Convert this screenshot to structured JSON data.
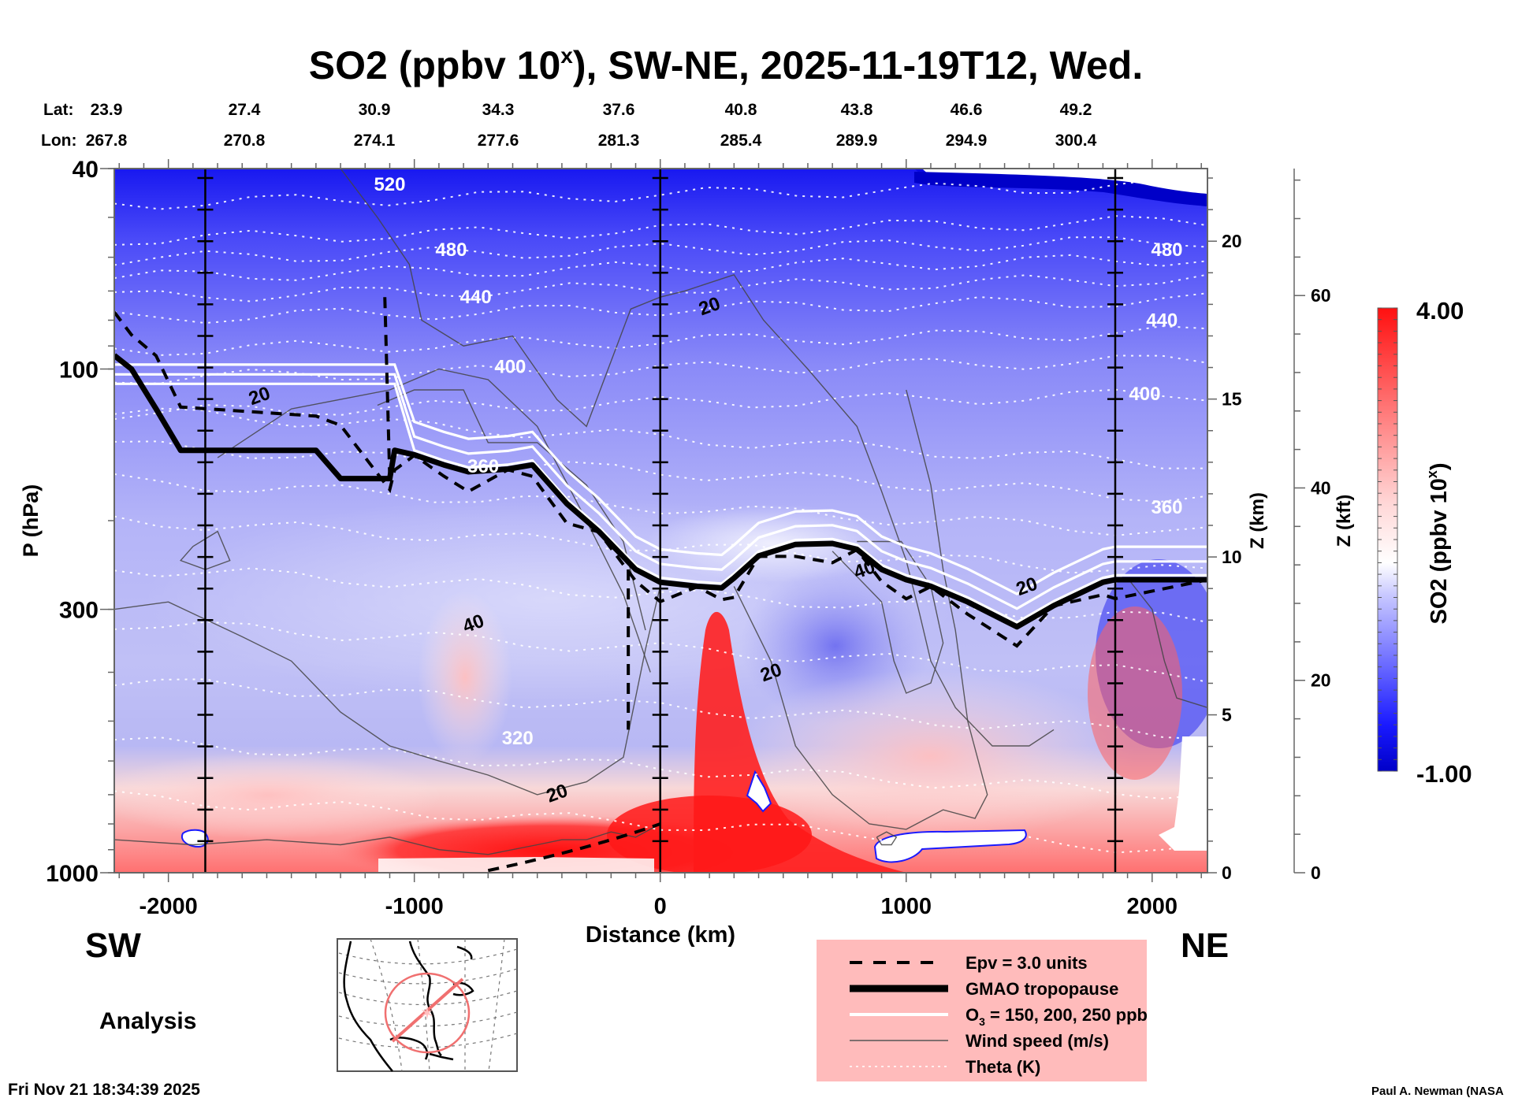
{
  "chart_data": {
    "type": "heatmap",
    "title": "SO2 (ppbv 10^x), SW-NE, 2025-11-19T12, Wed.",
    "title_parts": {
      "pre": "SO2 (ppbv 10",
      "sup": "x",
      "post": "), SW-NE, 2025-11-19T12, Wed."
    },
    "xlabel": "Distance (km)",
    "ylabel": "P (hPa)",
    "xlim": [
      -2220,
      2225
    ],
    "ylim": [
      1000,
      40
    ],
    "yscale": "log",
    "x_ticks": [
      -2000,
      -1000,
      0,
      1000,
      2000
    ],
    "x_tick_labels": [
      "-2000",
      "-1000",
      "0",
      "1000",
      "2000"
    ],
    "y_ticks": [
      40,
      100,
      300,
      1000
    ],
    "y_tick_labels": [
      "40",
      "100",
      "300",
      "1000"
    ],
    "z_km_axis": {
      "label": "Z (km)",
      "ticks": [
        0,
        5,
        10,
        15,
        20
      ],
      "tick_labels": [
        "0",
        "5",
        "10",
        "15",
        "20"
      ]
    },
    "z_kft_axis": {
      "label": "Z (kft)",
      "ticks": [
        0,
        20,
        40,
        60
      ],
      "tick_labels": [
        "0",
        "20",
        "40",
        "60"
      ]
    },
    "lat_lon": {
      "lat_label": "Lat:",
      "lon_label": "Lon:",
      "lat": [
        "23.9",
        "27.4",
        "30.9",
        "34.3",
        "37.6",
        "40.8",
        "43.8",
        "46.6",
        "49.2"
      ],
      "lon": [
        "267.8",
        "270.8",
        "274.1",
        "277.6",
        "281.3",
        "285.4",
        "289.9",
        "294.9",
        "300.4"
      ]
    },
    "reference_verticals_km": [
      -1850,
      0,
      1850
    ],
    "colorbar": {
      "label_pre": "SO2 (ppbv 10",
      "label_sup": "x",
      "label_post": ")",
      "min": -1.0,
      "max": 4.0,
      "min_label": "-1.00",
      "max_label": "4.00",
      "colors": {
        "low": "#0000c8",
        "mid": "#ffffff",
        "high": "#ff0000"
      }
    },
    "theta_labels_K": [
      {
        "value": "520",
        "x": -1100,
        "p": 43
      },
      {
        "value": "480",
        "x": -850,
        "p": 58
      },
      {
        "value": "440",
        "x": -750,
        "p": 72
      },
      {
        "value": "400",
        "x": -610,
        "p": 99
      },
      {
        "value": "360",
        "x": -720,
        "p": 156
      },
      {
        "value": "320",
        "x": -580,
        "p": 540
      },
      {
        "value": "480",
        "x": 2060,
        "p": 58
      },
      {
        "value": "440",
        "x": 2040,
        "p": 80
      },
      {
        "value": "400",
        "x": 1970,
        "p": 112
      },
      {
        "value": "360",
        "x": 2060,
        "p": 188
      }
    ],
    "wind_labels_ms": [
      {
        "value": "20",
        "x": 200,
        "p": 75
      },
      {
        "value": "20",
        "x": -1630,
        "p": 113
      },
      {
        "value": "40",
        "x": -760,
        "p": 320
      },
      {
        "value": "20",
        "x": -420,
        "p": 695
      },
      {
        "value": "20",
        "x": 450,
        "p": 400
      },
      {
        "value": "40",
        "x": 830,
        "p": 250
      },
      {
        "value": "20",
        "x": 1490,
        "p": 270
      }
    ],
    "tropopause_hPa": {
      "x": [
        -2220,
        -2150,
        -2050,
        -1950,
        -1400,
        -1300,
        -1100,
        -1080,
        -1000,
        -880,
        -780,
        -620,
        -520,
        -380,
        -250,
        -100,
        0,
        150,
        250,
        300,
        400,
        550,
        700,
        800,
        900,
        1000,
        1100,
        1250,
        1450,
        1600,
        1800,
        1850,
        2225
      ],
      "p": [
        94,
        100,
        120,
        145,
        145,
        165,
        165,
        145,
        148,
        155,
        160,
        158,
        155,
        185,
        210,
        250,
        265,
        270,
        272,
        260,
        235,
        223,
        222,
        228,
        250,
        262,
        270,
        290,
        325,
        295,
        265,
        262,
        262
      ]
    },
    "legend": {
      "placement": "bottom-center",
      "entries": [
        {
          "label": "Epv = 3.0 units",
          "style": "dashed-black"
        },
        {
          "label": "GMAO tropopause",
          "style": "thick-black"
        },
        {
          "label_pre": "O",
          "label_sub": "3",
          "label_post": " = 150, 200, 250 ppb",
          "label": "O3 = 150, 200, 250 ppb",
          "style": "white"
        },
        {
          "label": "Wind speed (m/s)",
          "style": "thin-gray"
        },
        {
          "label": "Theta (K)",
          "style": "dotted-white"
        }
      ],
      "background": "#ffbbbb"
    },
    "direction_labels": {
      "left": "SW",
      "right": "NE"
    }
  },
  "annotations": {
    "analysis": "Analysis",
    "timestamp": "Fri Nov 21 18:34:39 2025",
    "credit": "Paul A. Newman (NASA"
  }
}
